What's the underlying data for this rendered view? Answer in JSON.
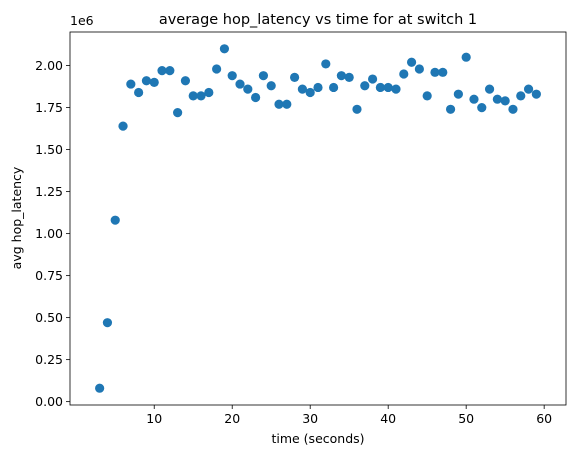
{
  "chart_data": {
    "type": "scatter",
    "title": "average hop_latency vs time for at switch 1",
    "xlabel": "time (seconds)",
    "ylabel": "avg hop_latency",
    "y_offset_label": "1e6",
    "y_multiplier": 1000000,
    "xlim": [
      -0.8,
      62.8
    ],
    "ylim": [
      -0.02,
      2.2
    ],
    "x_ticks": [
      10,
      20,
      30,
      40,
      50,
      60
    ],
    "x_tick_labels": [
      "10",
      "20",
      "30",
      "40",
      "50",
      "60"
    ],
    "y_ticks": [
      0.0,
      0.25,
      0.5,
      0.75,
      1.0,
      1.25,
      1.5,
      1.75,
      2.0
    ],
    "y_tick_labels": [
      "0.00",
      "0.25",
      "0.50",
      "0.75",
      "1.00",
      "1.25",
      "1.50",
      "1.75",
      "2.00"
    ],
    "grid": false,
    "marker_color": "#1f77b4",
    "x": [
      3,
      4,
      5,
      6,
      7,
      8,
      9,
      10,
      11,
      12,
      13,
      14,
      15,
      16,
      17,
      18,
      19,
      20,
      21,
      22,
      23,
      24,
      25,
      26,
      27,
      28,
      29,
      30,
      31,
      32,
      33,
      34,
      35,
      36,
      37,
      38,
      39,
      40,
      41,
      42,
      43,
      44,
      45,
      46,
      47,
      48,
      49,
      50,
      51,
      52,
      53,
      54,
      55,
      56,
      57,
      58,
      59
    ],
    "y": [
      0.08,
      0.47,
      1.08,
      1.64,
      1.89,
      1.84,
      1.91,
      1.9,
      1.97,
      1.97,
      1.72,
      1.91,
      1.82,
      1.82,
      1.84,
      1.98,
      2.1,
      1.94,
      1.89,
      1.86,
      1.81,
      1.94,
      1.88,
      1.77,
      1.77,
      1.93,
      1.86,
      1.84,
      1.87,
      2.01,
      1.87,
      1.94,
      1.93,
      1.74,
      1.88,
      1.92,
      1.87,
      1.87,
      1.86,
      1.95,
      2.02,
      1.98,
      1.82,
      1.96,
      1.96,
      1.74,
      1.83,
      2.05,
      1.8,
      1.75,
      1.86,
      1.8,
      1.79,
      1.74,
      1.82,
      1.86,
      1.83
    ]
  }
}
